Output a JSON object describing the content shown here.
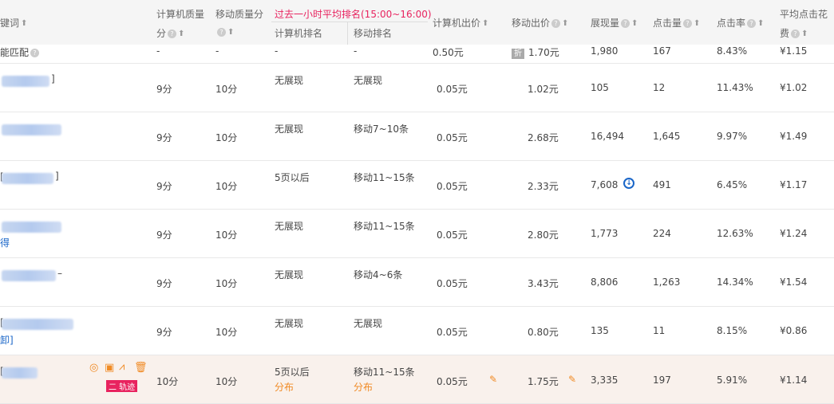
{
  "header": {
    "keyword": "键词",
    "pc_quality": "计算机质量",
    "pc_quality2": "分",
    "mobile_quality": "移动质量分",
    "rank_group": "过去一小时平均排名(15:00~16:00)",
    "pc_rank": "计算机排名",
    "mobile_rank": "移动排名",
    "pc_bid": "计算机出价",
    "mobile_bid": "移动出价",
    "impressions": "展现量",
    "clicks": "点击量",
    "ctr": "点击率",
    "cpc": "平均点击花",
    "cpc2": "费"
  },
  "smart_row": {
    "keyword": "能匹配",
    "pc_quality": "-",
    "mobile_quality": "-",
    "pc_rank": "-",
    "mobile_rank": "-",
    "pc_bid": "0.50元",
    "discount_tag": "折",
    "mobile_bid": "1.70元",
    "impressions": "1,980",
    "clicks": "167",
    "ctr": "8.43%",
    "cpc": "¥1.15"
  },
  "rows": [
    {
      "kw_prefix": "",
      "kw_suffix": "]",
      "kw_line2": "",
      "pc_quality": "9分",
      "mobile_quality": "10分",
      "pc_rank": "无展现",
      "mobile_rank": "无展现",
      "pc_bid": "0.05元",
      "mobile_bid": "1.02元",
      "impressions": "105",
      "clicks": "12",
      "ctr": "11.43%",
      "cpc": "¥1.02"
    },
    {
      "kw_prefix": "",
      "kw_suffix": "",
      "kw_line2": "",
      "pc_quality": "9分",
      "mobile_quality": "10分",
      "pc_rank": "无展现",
      "mobile_rank": "移动7~10条",
      "pc_bid": "0.05元",
      "mobile_bid": "2.68元",
      "impressions": "16,494",
      "clicks": "1,645",
      "ctr": "9.97%",
      "cpc": "¥1.49"
    },
    {
      "kw_prefix": "[",
      "kw_suffix": "]",
      "kw_line2": "",
      "pc_quality": "9分",
      "mobile_quality": "10分",
      "pc_rank": "5页以后",
      "mobile_rank": "移动11~15条",
      "pc_bid": "0.05元",
      "mobile_bid": "2.33元",
      "impressions": "7,608",
      "clicks": "491",
      "ctr": "6.45%",
      "cpc": "¥1.17",
      "download_icon": true
    },
    {
      "kw_prefix": "",
      "kw_suffix": "",
      "kw_line2": "得",
      "pc_quality": "9分",
      "mobile_quality": "10分",
      "pc_rank": "无展现",
      "mobile_rank": "移动11~15条",
      "pc_bid": "0.05元",
      "mobile_bid": "2.80元",
      "impressions": "1,773",
      "clicks": "224",
      "ctr": "12.63%",
      "cpc": "¥1.24"
    },
    {
      "kw_prefix": "",
      "kw_suffix": "–",
      "kw_line2": "",
      "pc_quality": "9分",
      "mobile_quality": "10分",
      "pc_rank": "无展现",
      "mobile_rank": "移动4~6条",
      "pc_bid": "0.05元",
      "mobile_bid": "3.43元",
      "impressions": "8,806",
      "clicks": "1,263",
      "ctr": "14.34%",
      "cpc": "¥1.54"
    },
    {
      "kw_prefix": "[",
      "kw_suffix": "",
      "kw_line2": "卸]",
      "pc_quality": "9分",
      "mobile_quality": "10分",
      "pc_rank": "无展现",
      "mobile_rank": "无展现",
      "pc_bid": "0.05元",
      "mobile_bid": "0.80元",
      "impressions": "135",
      "clicks": "11",
      "ctr": "8.15%",
      "cpc": "¥0.86"
    },
    {
      "kw_prefix": "[",
      "kw_suffix": "",
      "kw_line2": "",
      "pc_quality": "10分",
      "mobile_quality": "10分",
      "pc_rank": "5页以后",
      "mobile_rank": "移动11~15条",
      "pc_bid": "0.05元",
      "mobile_bid": "1.75元",
      "impressions": "3,335",
      "clicks": "197",
      "ctr": "5.91%",
      "cpc": "¥1.14",
      "highlight": true,
      "rank_link": "分布",
      "track_badge": "二 轨迹"
    }
  ],
  "colors": {
    "accent_red": "#e8235f",
    "link_blue": "#1a66c8",
    "orange": "#f08a24",
    "header_bg": "#f5f5f5",
    "highlight_bg": "#f9f1ec"
  }
}
